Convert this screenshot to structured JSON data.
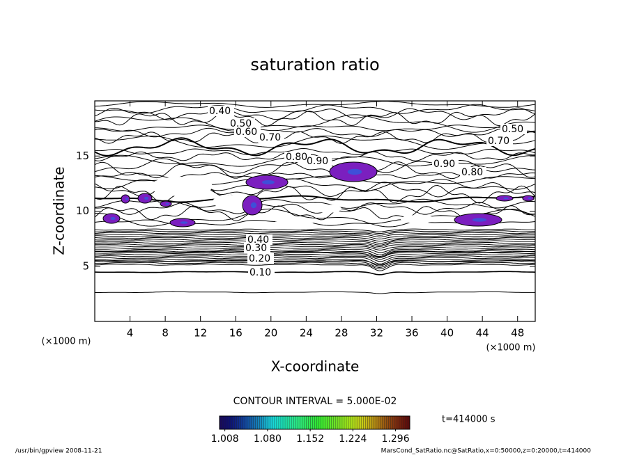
{
  "chart_data": {
    "type": "contour",
    "title": "saturation ratio",
    "xlabel": "X-coordinate",
    "ylabel": "Z-coordinate",
    "xunit": "(×1000 m)",
    "yunit": "(×1000 m)",
    "xlim": [
      0,
      50
    ],
    "ylim": [
      0,
      20
    ],
    "xticks": [
      4,
      8,
      12,
      16,
      20,
      24,
      28,
      32,
      36,
      40,
      44,
      48
    ],
    "yticks": [
      5,
      10,
      15
    ],
    "contour_interval": "CONTOUR INTERVAL = 5.000E-02",
    "contour_labels": [
      {
        "value": 0.4,
        "label": "0.40"
      },
      {
        "value": 0.5,
        "label": "0.50"
      },
      {
        "value": 0.6,
        "label": "0.60"
      },
      {
        "value": 0.7,
        "label": "0.70"
      },
      {
        "value": 0.8,
        "label": "0.80"
      },
      {
        "value": 0.9,
        "label": "0.90"
      },
      {
        "value": 0.9,
        "label": "0.90"
      },
      {
        "value": 0.8,
        "label": "0.80"
      },
      {
        "value": 0.7,
        "label": "0.70"
      },
      {
        "value": 0.5,
        "label": "0.50"
      },
      {
        "value": 0.4,
        "label": "0.40"
      },
      {
        "value": 0.3,
        "label": "0.30"
      },
      {
        "value": 0.2,
        "label": "0.20"
      },
      {
        "value": 0.1,
        "label": "0.10"
      }
    ],
    "clim": [
      0.999,
      1.32
    ],
    "cticks": [
      {
        "value": 1.008,
        "label": "1.008"
      },
      {
        "value": 1.08,
        "label": "1.080"
      },
      {
        "value": 1.152,
        "label": "1.152"
      },
      {
        "value": 1.224,
        "label": "1.224"
      },
      {
        "value": 1.296,
        "label": "1.296"
      }
    ],
    "time_label": "t=414000 s",
    "footer_left": "/usr/bin/gpview  2008-11-21",
    "footer_right": "MarsCond_SatRatio.nc@SatRatio,x=0:50000,z=0:20000,t=414000"
  }
}
